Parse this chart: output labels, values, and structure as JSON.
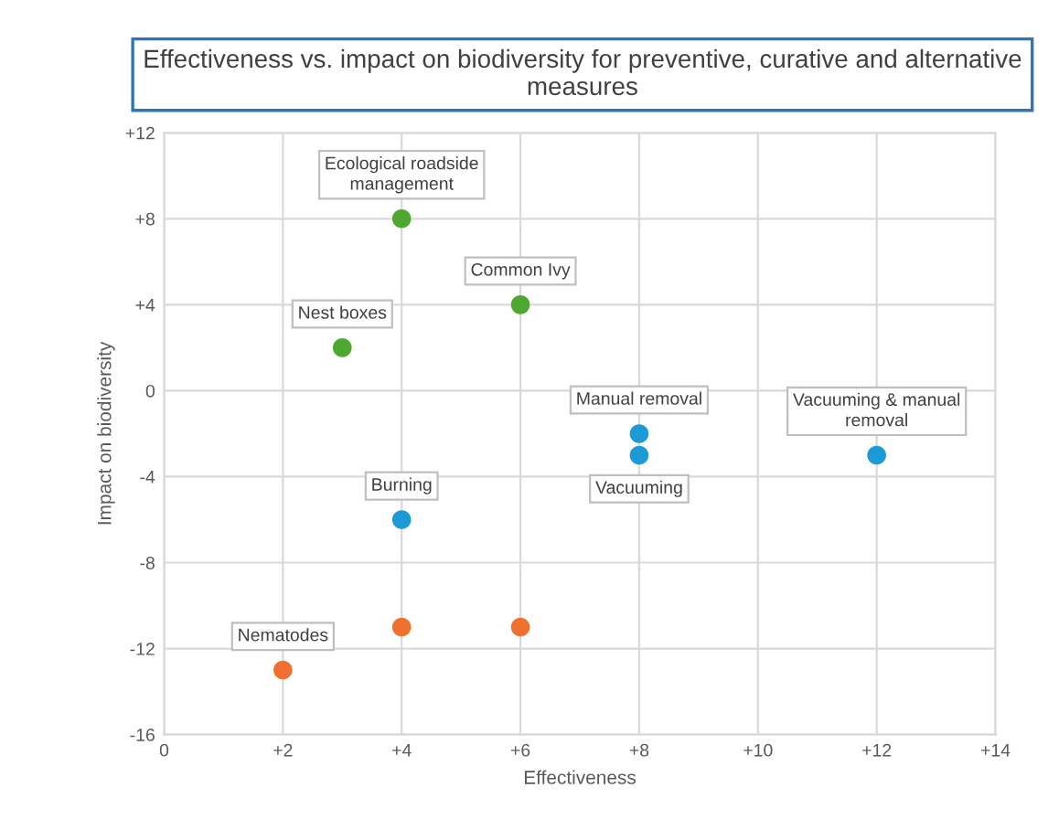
{
  "chart_data": {
    "type": "scatter",
    "title": "Effectiveness vs. impact on biodiversity for preventive, curative and alternative measures",
    "xlabel": "Effectiveness",
    "ylabel": "Impact on biodiversity",
    "series": [
      {
        "color": "#4ea72e",
        "x": [
          4,
          6,
          3
        ],
        "values": [
          8,
          4,
          2
        ]
      },
      {
        "color": "#1b9ad6",
        "x": [
          8,
          8,
          4,
          12
        ],
        "values": [
          -2,
          -3,
          -6,
          -3
        ]
      },
      {
        "color": "#f07030",
        "x": [
          4,
          6,
          2
        ],
        "values": [
          -11,
          -11,
          -13
        ]
      }
    ],
    "annotations": [
      {
        "text": "Ecological roadside\nmanagement",
        "x": 4,
        "y": 8
      },
      {
        "text": "Common Ivy",
        "x": 6,
        "y": 4
      },
      {
        "text": "Nest boxes",
        "x": 3,
        "y": 2
      },
      {
        "text": "Manual removal",
        "x": 8,
        "y": -2
      },
      {
        "text": "Vacuuming",
        "x": 8,
        "y": -3
      },
      {
        "text": "Burning",
        "x": 4,
        "y": -6
      },
      {
        "text": "Vacuuming & manual\nremoval",
        "x": 12,
        "y": -3
      },
      {
        "text": "Nematodes",
        "x": 2,
        "y": -13
      }
    ],
    "xlim": [
      0,
      14
    ],
    "ylim": [
      -16,
      12
    ],
    "xticks": [
      0,
      {
        "value": 2,
        "label": "+2"
      },
      {
        "value": 4,
        "label": "+4"
      },
      {
        "value": 6,
        "label": "+6"
      },
      {
        "value": 8,
        "label": "+8"
      },
      {
        "value": 10,
        "label": "+10"
      },
      {
        "value": 12,
        "label": "+12"
      },
      {
        "value": 14,
        "label": "+14"
      }
    ],
    "yticks": [
      -16,
      -12,
      -8,
      -4,
      0,
      {
        "value": 4,
        "label": "+4"
      },
      {
        "value": 8,
        "label": "+8"
      },
      {
        "value": 12,
        "label": "+12"
      }
    ],
    "grid": true,
    "marker": "circle"
  }
}
